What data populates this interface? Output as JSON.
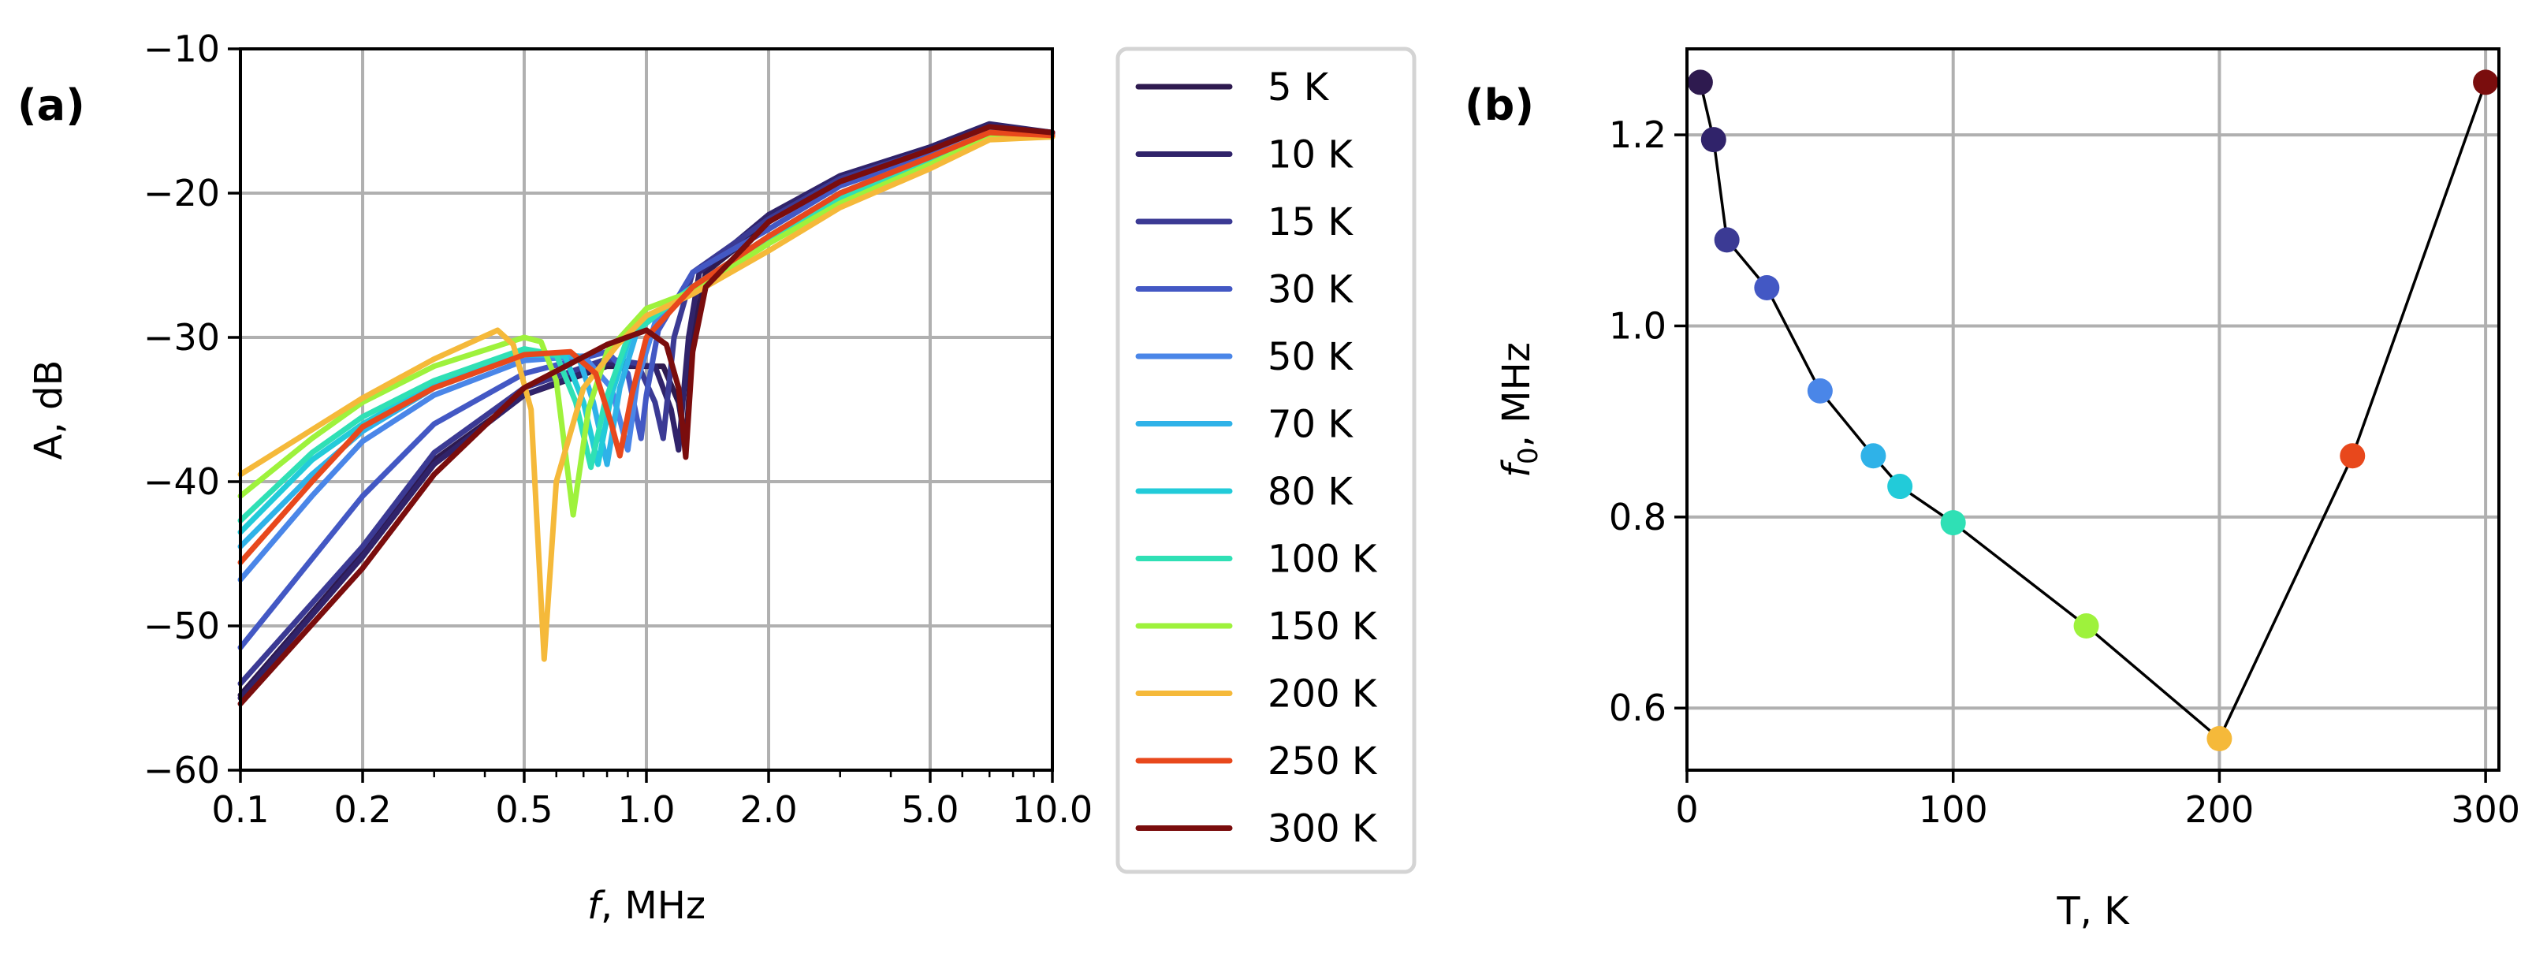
{
  "chart_data": [
    {
      "panel": "(a)",
      "type": "line",
      "xscale": "log",
      "xlabel_italic": "f",
      "xlabel_rest": ", MHz",
      "ylabel": "A, dB",
      "xlim": [
        0.1,
        10.0
      ],
      "ylim": [
        -60,
        -10
      ],
      "xticks": [
        0.1,
        0.2,
        0.5,
        1.0,
        2.0,
        5.0,
        10.0
      ],
      "xtick_labels": [
        "0.1",
        "0.2",
        "0.5",
        "1.0",
        "2.0",
        "5.0",
        "10.0"
      ],
      "yticks": [
        -60,
        -50,
        -40,
        -30,
        -20,
        -10
      ],
      "ytick_labels": [
        "−60",
        "−50",
        "−40",
        "−30",
        "−20",
        "−10"
      ],
      "grid": true,
      "legend": "outside-right",
      "series": [
        {
          "name": "5 K",
          "color": "#2e1a4f",
          "points": [
            [
              0.1,
              -54.8
            ],
            [
              0.2,
              -45.0
            ],
            [
              0.3,
              -38.5
            ],
            [
              0.5,
              -34.0
            ],
            [
              0.8,
              -32.0
            ],
            [
              1.1,
              -32.0
            ],
            [
              1.2,
              -34.5
            ],
            [
              1.25,
              -37.5
            ],
            [
              1.3,
              -30.0
            ],
            [
              1.4,
              -25.5
            ],
            [
              2.0,
              -22.0
            ],
            [
              3.0,
              -19.0
            ],
            [
              5.0,
              -17.0
            ],
            [
              7.0,
              -15.3
            ],
            [
              10.0,
              -15.8
            ]
          ]
        },
        {
          "name": "10 K",
          "color": "#30236a",
          "points": [
            [
              0.1,
              -55.0
            ],
            [
              0.2,
              -45.2
            ],
            [
              0.3,
              -38.8
            ],
            [
              0.5,
              -34.0
            ],
            [
              0.8,
              -31.8
            ],
            [
              1.05,
              -32.0
            ],
            [
              1.15,
              -35.0
            ],
            [
              1.2,
              -37.8
            ],
            [
              1.27,
              -30.0
            ],
            [
              1.35,
              -25.5
            ],
            [
              2.0,
              -21.5
            ],
            [
              3.0,
              -18.8
            ],
            [
              5.0,
              -16.8
            ],
            [
              7.0,
              -15.2
            ],
            [
              10.0,
              -15.8
            ]
          ]
        },
        {
          "name": "15 K",
          "color": "#3b3a94",
          "points": [
            [
              0.1,
              -54.0
            ],
            [
              0.2,
              -44.5
            ],
            [
              0.3,
              -38.0
            ],
            [
              0.5,
              -33.5
            ],
            [
              0.8,
              -31.5
            ],
            [
              0.95,
              -31.8
            ],
            [
              1.05,
              -34.5
            ],
            [
              1.1,
              -37.0
            ],
            [
              1.17,
              -30.0
            ],
            [
              1.3,
              -25.5
            ],
            [
              2.0,
              -21.8
            ],
            [
              3.0,
              -19.0
            ],
            [
              5.0,
              -17.0
            ],
            [
              7.0,
              -15.4
            ],
            [
              10.0,
              -15.8
            ]
          ]
        },
        {
          "name": "30 K",
          "color": "#4358c4",
          "points": [
            [
              0.1,
              -51.5
            ],
            [
              0.2,
              -41.0
            ],
            [
              0.3,
              -36.0
            ],
            [
              0.5,
              -32.5
            ],
            [
              0.8,
              -31.0
            ],
            [
              0.9,
              -32.5
            ],
            [
              0.97,
              -37.0
            ],
            [
              1.0,
              -34.0
            ],
            [
              1.07,
              -29.5
            ],
            [
              1.3,
              -25.5
            ],
            [
              2.0,
              -22.5
            ],
            [
              3.0,
              -19.5
            ],
            [
              5.0,
              -17.3
            ],
            [
              7.0,
              -15.6
            ],
            [
              10.0,
              -15.9
            ]
          ]
        },
        {
          "name": "50 K",
          "color": "#4a86e8",
          "points": [
            [
              0.1,
              -46.8
            ],
            [
              0.15,
              -41.0
            ],
            [
              0.2,
              -37.2
            ],
            [
              0.3,
              -34.0
            ],
            [
              0.5,
              -31.6
            ],
            [
              0.7,
              -31.3
            ],
            [
              0.82,
              -33.5
            ],
            [
              0.9,
              -37.8
            ],
            [
              0.95,
              -33.0
            ],
            [
              1.05,
              -29.0
            ],
            [
              1.3,
              -26.5
            ],
            [
              2.0,
              -23.0
            ],
            [
              3.0,
              -20.0
            ],
            [
              5.0,
              -17.5
            ],
            [
              7.0,
              -15.7
            ],
            [
              10.0,
              -16.0
            ]
          ]
        },
        {
          "name": "70 K",
          "color": "#2fb2e8",
          "points": [
            [
              0.1,
              -44.5
            ],
            [
              0.15,
              -39.5
            ],
            [
              0.2,
              -36.5
            ],
            [
              0.3,
              -33.5
            ],
            [
              0.5,
              -31.2
            ],
            [
              0.68,
              -31.3
            ],
            [
              0.74,
              -34.5
            ],
            [
              0.8,
              -38.8
            ],
            [
              0.86,
              -33.5
            ],
            [
              0.95,
              -29.5
            ],
            [
              1.3,
              -26.5
            ],
            [
              2.0,
              -23.0
            ],
            [
              3.0,
              -20.0
            ],
            [
              5.0,
              -17.5
            ],
            [
              7.0,
              -15.8
            ],
            [
              10.0,
              -16.0
            ]
          ]
        },
        {
          "name": "80 K",
          "color": "#22cbd9",
          "points": [
            [
              0.1,
              -43.5
            ],
            [
              0.15,
              -38.5
            ],
            [
              0.2,
              -36.0
            ],
            [
              0.3,
              -33.2
            ],
            [
              0.5,
              -31.0
            ],
            [
              0.63,
              -31.3
            ],
            [
              0.7,
              -34.5
            ],
            [
              0.76,
              -38.8
            ],
            [
              0.82,
              -34.0
            ],
            [
              0.92,
              -29.5
            ],
            [
              1.3,
              -26.5
            ],
            [
              2.0,
              -23.0
            ],
            [
              3.0,
              -20.2
            ],
            [
              5.0,
              -17.7
            ],
            [
              7.0,
              -15.9
            ],
            [
              10.0,
              -16.0
            ]
          ]
        },
        {
          "name": "100 K",
          "color": "#2fe0b5",
          "points": [
            [
              0.1,
              -42.7
            ],
            [
              0.15,
              -38.0
            ],
            [
              0.2,
              -35.5
            ],
            [
              0.3,
              -33.0
            ],
            [
              0.5,
              -30.8
            ],
            [
              0.6,
              -31.2
            ],
            [
              0.67,
              -34.5
            ],
            [
              0.73,
              -39.0
            ],
            [
              0.79,
              -34.5
            ],
            [
              0.9,
              -30.0
            ],
            [
              1.3,
              -26.5
            ],
            [
              2.0,
              -23.2
            ],
            [
              3.0,
              -20.3
            ],
            [
              5.0,
              -17.8
            ],
            [
              7.0,
              -16.0
            ],
            [
              10.0,
              -16.0
            ]
          ]
        },
        {
          "name": "150 K",
          "color": "#9ef23c",
          "points": [
            [
              0.1,
              -41.0
            ],
            [
              0.15,
              -37.0
            ],
            [
              0.2,
              -34.5
            ],
            [
              0.3,
              -32.0
            ],
            [
              0.5,
              -30.0
            ],
            [
              0.55,
              -30.3
            ],
            [
              0.6,
              -33.0
            ],
            [
              0.66,
              -42.3
            ],
            [
              0.72,
              -35.0
            ],
            [
              0.8,
              -31.0
            ],
            [
              1.0,
              -28.0
            ],
            [
              1.3,
              -26.8
            ],
            [
              2.0,
              -23.5
            ],
            [
              3.0,
              -20.7
            ],
            [
              5.0,
              -18.0
            ],
            [
              7.0,
              -16.1
            ],
            [
              10.0,
              -16.1
            ]
          ]
        },
        {
          "name": "200 K",
          "color": "#f5b93a",
          "points": [
            [
              0.1,
              -39.5
            ],
            [
              0.2,
              -34.2
            ],
            [
              0.3,
              -31.5
            ],
            [
              0.43,
              -29.5
            ],
            [
              0.47,
              -30.5
            ],
            [
              0.52,
              -35.0
            ],
            [
              0.56,
              -52.3
            ],
            [
              0.6,
              -40.0
            ],
            [
              0.7,
              -33.5
            ],
            [
              0.85,
              -30.5
            ],
            [
              1.0,
              -28.5
            ],
            [
              1.3,
              -27.0
            ],
            [
              2.0,
              -24.0
            ],
            [
              3.0,
              -21.0
            ],
            [
              5.0,
              -18.3
            ],
            [
              7.0,
              -16.3
            ],
            [
              10.0,
              -16.1
            ]
          ]
        },
        {
          "name": "250 K",
          "color": "#e8481c",
          "points": [
            [
              0.1,
              -45.6
            ],
            [
              0.15,
              -40.0
            ],
            [
              0.2,
              -36.2
            ],
            [
              0.3,
              -33.5
            ],
            [
              0.5,
              -31.2
            ],
            [
              0.65,
              -31.0
            ],
            [
              0.75,
              -32.5
            ],
            [
              0.82,
              -36.0
            ],
            [
              0.86,
              -38.2
            ],
            [
              0.92,
              -34.0
            ],
            [
              1.0,
              -30.0
            ],
            [
              1.3,
              -26.5
            ],
            [
              2.0,
              -23.0
            ],
            [
              3.0,
              -20.0
            ],
            [
              5.0,
              -17.5
            ],
            [
              7.0,
              -15.8
            ],
            [
              10.0,
              -16.0
            ]
          ]
        },
        {
          "name": "300 K",
          "color": "#7a0d0d",
          "points": [
            [
              0.1,
              -55.4
            ],
            [
              0.2,
              -46.0
            ],
            [
              0.3,
              -39.5
            ],
            [
              0.5,
              -33.5
            ],
            [
              0.8,
              -30.5
            ],
            [
              1.0,
              -29.5
            ],
            [
              1.12,
              -30.5
            ],
            [
              1.2,
              -33.5
            ],
            [
              1.25,
              -38.3
            ],
            [
              1.3,
              -31.0
            ],
            [
              1.4,
              -26.5
            ],
            [
              2.0,
              -22.0
            ],
            [
              3.0,
              -19.2
            ],
            [
              5.0,
              -17.0
            ],
            [
              7.0,
              -15.4
            ],
            [
              10.0,
              -15.8
            ]
          ]
        }
      ]
    },
    {
      "panel": "(b)",
      "type": "scatter",
      "xlabel": "T, K",
      "ylabel_italic": "f",
      "ylabel_sub": "0",
      "ylabel_rest": ", MHz",
      "xlim": [
        0,
        305
      ],
      "ylim": [
        0.535,
        1.29
      ],
      "xticks": [
        0,
        100,
        200,
        300
      ],
      "xtick_labels": [
        "0",
        "100",
        "200",
        "300"
      ],
      "yticks": [
        0.6,
        0.8,
        1.0,
        1.2
      ],
      "ytick_labels": [
        "0.6",
        "0.8",
        "1.0",
        "1.2"
      ],
      "grid": true,
      "connected": true,
      "points": [
        {
          "T": 5,
          "f0": 1.255,
          "color": "#2e1a4f"
        },
        {
          "T": 10,
          "f0": 1.195,
          "color": "#30236a"
        },
        {
          "T": 15,
          "f0": 1.09,
          "color": "#3b3a94"
        },
        {
          "T": 30,
          "f0": 1.04,
          "color": "#4358c4"
        },
        {
          "T": 50,
          "f0": 0.932,
          "color": "#4a86e8"
        },
        {
          "T": 70,
          "f0": 0.864,
          "color": "#2fb2e8"
        },
        {
          "T": 80,
          "f0": 0.832,
          "color": "#22cbd9"
        },
        {
          "T": 100,
          "f0": 0.794,
          "color": "#2fe0b5"
        },
        {
          "T": 150,
          "f0": 0.686,
          "color": "#9ef23c"
        },
        {
          "T": 200,
          "f0": 0.568,
          "color": "#f5b93a"
        },
        {
          "T": 250,
          "f0": 0.864,
          "color": "#e8481c"
        },
        {
          "T": 300,
          "f0": 1.255,
          "color": "#7a0d0d"
        }
      ]
    }
  ]
}
